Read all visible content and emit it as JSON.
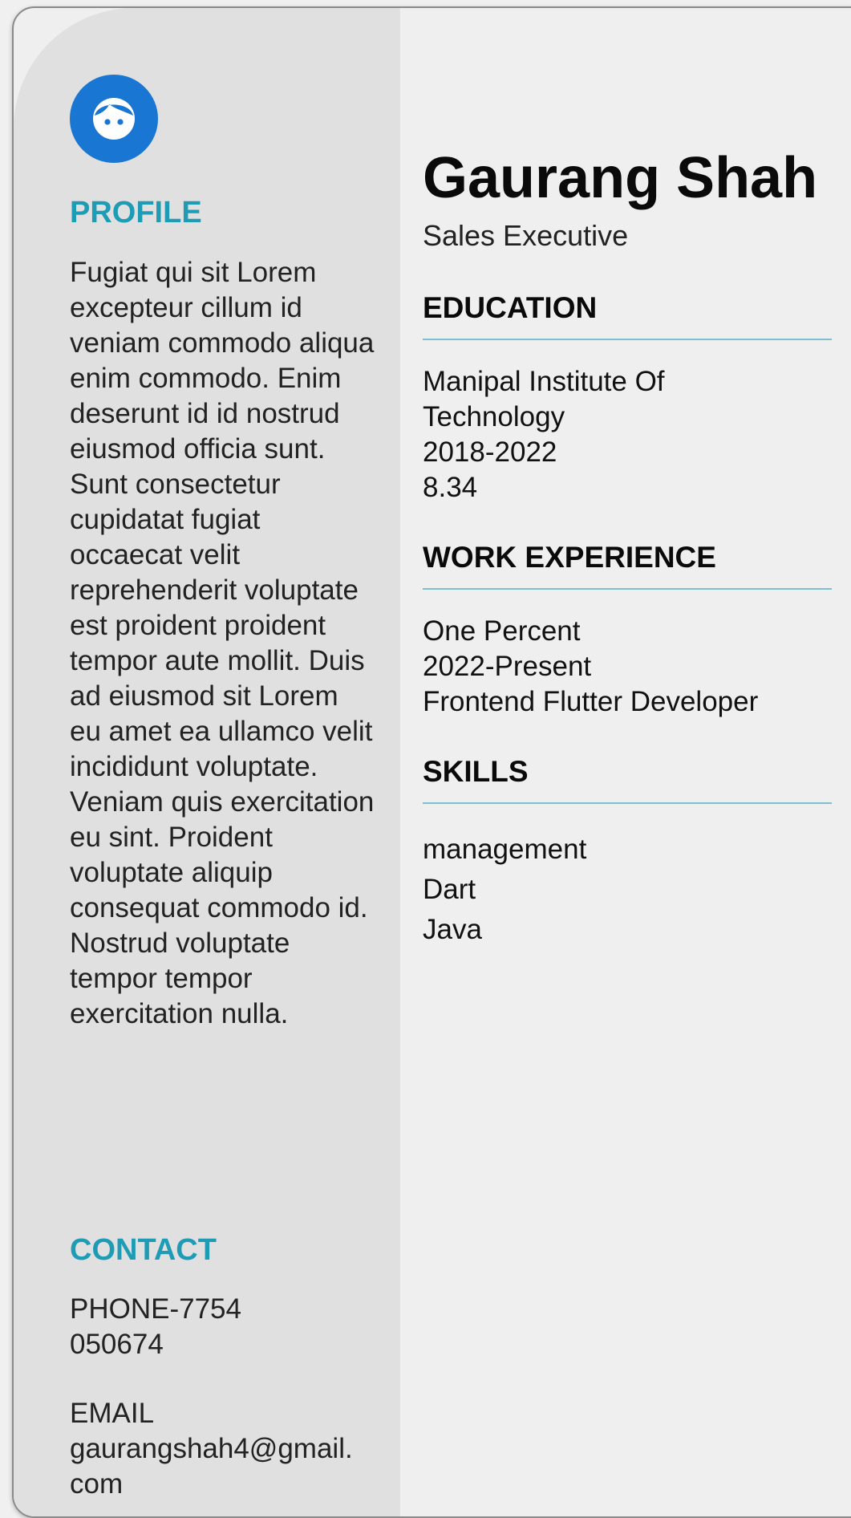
{
  "profile": {
    "heading": "PROFILE",
    "text": "Fugiat qui sit Lorem excepteur cillum id veniam commodo aliqua enim commodo. Enim deserunt id id nostrud eiusmod officia sunt. Sunt consectetur cupidatat fugiat occaecat velit reprehenderit voluptate est proident proident tempor aute mollit. Duis ad eiusmod sit Lorem eu amet ea ullamco velit incididunt voluptate. Veniam quis exercitation eu sint. Proident voluptate aliquip consequat commodo id. Nostrud voluptate tempor tempor exercitation nulla."
  },
  "contact": {
    "heading": "CONTACT",
    "phone": "PHONE-7754050674",
    "email_label": "EMAIL",
    "email": "gaurangshah4@gmail.com"
  },
  "header": {
    "name": "Gaurang Shah",
    "role": "Sales Executive"
  },
  "education": {
    "heading": "EDUCATION",
    "institute": "Manipal Institute Of Technology",
    "years": "2018-2022",
    "grade": "8.34"
  },
  "work": {
    "heading": "WORK EXPERIENCE",
    "company": "One Percent",
    "period": "2022-Present",
    "position": "Frontend Flutter Developer"
  },
  "skills": {
    "heading": "SKILLS",
    "items": [
      "management",
      "Dart",
      "Java"
    ]
  },
  "colors": {
    "accent": "#1f9cb5",
    "avatar": "#1976d2",
    "sidebar": "#e0e0e0",
    "background": "#efefef"
  },
  "icons": {
    "avatar": "face-icon"
  }
}
